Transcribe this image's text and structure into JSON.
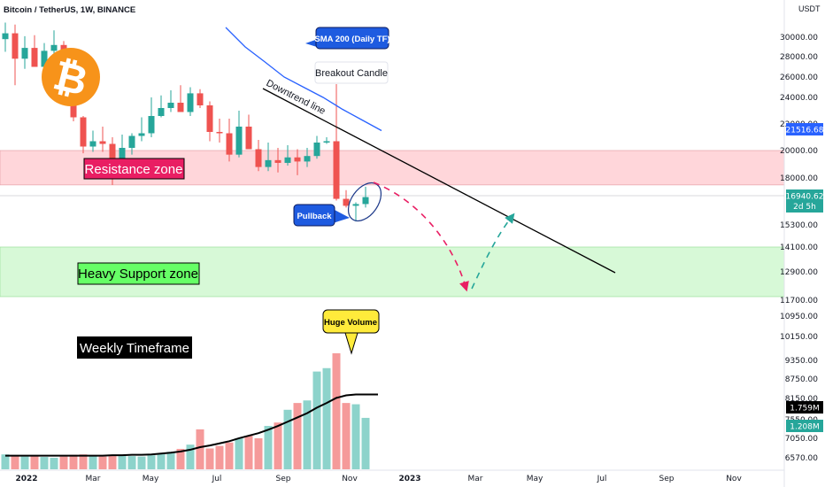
{
  "header": {
    "title": "Bitcoin / TetherUS, 1W, BINANCE",
    "currency": "USDT"
  },
  "logo": {
    "name": "bitcoin-logo",
    "color": "#F7931A"
  },
  "colors": {
    "up": "#26A69A",
    "down": "#EF5350",
    "vol_up": "#8DD3CB",
    "vol_down": "#F59A9A",
    "sma": "#2962FF",
    "vol_ma": "#000000",
    "resistance": "#FFD6DA",
    "support": "#D7F9D7",
    "resistance_label": "#E91E63",
    "support_label": "#66FF66"
  },
  "annotations": {
    "sma_label": "SMA 200 (Daily TF)",
    "breakout_label": "Breakout Candle",
    "downtrend_label": "Downtrend line",
    "resistance_label": "Resistance zone",
    "support_label": "Heavy Support zone",
    "pullback_label": "Pullback",
    "volume_label": "Huge Volume",
    "timeframe_label": "Weekly Timeframe"
  },
  "price_badges": {
    "sma": "21516.68",
    "last": "16940.62",
    "countdown": "2d 5h",
    "volume_ma": "1.759M",
    "volume": "1.208M"
  },
  "chart_data": {
    "type": "candlestick",
    "title": "Bitcoin / TetherUS, 1W, BINANCE",
    "y_axis_ticks": [
      "30000.00",
      "28000.00",
      "26000.00",
      "24000.00",
      "22000.00",
      "20000.00",
      "18000.00",
      "15300.00",
      "14100.00",
      "12900.00",
      "11700.00",
      "10950.00",
      "10150.00",
      "9350.00",
      "8750.00",
      "8150.00",
      "7550.00",
      "7050.00",
      "6570.00"
    ],
    "x_axis_ticks": [
      "2022",
      "Mar",
      "May",
      "Jul",
      "Sep",
      "Nov",
      "2023",
      "Mar",
      "May",
      "Jul",
      "Sep",
      "Nov"
    ],
    "zones": {
      "resistance": [
        17600,
        20000
      ],
      "heavy_support": [
        11850,
        14100
      ]
    },
    "projection": {
      "down_to": 11850,
      "back_to": 15500
    },
    "volume_scale": "x1e6",
    "series": [
      {
        "name": "price",
        "ohlc": [
          [
            29800,
            31500,
            28500,
            30400
          ],
          [
            30400,
            31300,
            25200,
            27800
          ],
          [
            27800,
            30100,
            26800,
            28900
          ],
          [
            28900,
            30200,
            27100,
            27000
          ],
          [
            27000,
            29400,
            26600,
            28600
          ],
          [
            28600,
            30700,
            28200,
            29200
          ],
          [
            29200,
            29600,
            26500,
            26700
          ],
          [
            26700,
            27100,
            22200,
            22500
          ],
          [
            22500,
            22600,
            19800,
            20300
          ],
          [
            20300,
            21500,
            19900,
            20700
          ],
          [
            20700,
            21800,
            19900,
            20500
          ],
          [
            20500,
            21000,
            17600,
            18900
          ],
          [
            18900,
            21200,
            18600,
            20200
          ],
          [
            20200,
            21300,
            19700,
            21100
          ],
          [
            21100,
            22500,
            20700,
            21300
          ],
          [
            21300,
            24000,
            21000,
            22600
          ],
          [
            22600,
            24200,
            22500,
            23200
          ],
          [
            23200,
            24700,
            22900,
            23600
          ],
          [
            23600,
            25200,
            23000,
            22900
          ],
          [
            22900,
            25000,
            22600,
            24400
          ],
          [
            24400,
            24800,
            23200,
            23400
          ],
          [
            23400,
            23700,
            20700,
            21400
          ],
          [
            21400,
            22400,
            20600,
            21300
          ],
          [
            21300,
            22400,
            19200,
            19700
          ],
          [
            19700,
            23000,
            19500,
            21800
          ],
          [
            21800,
            22700,
            20200,
            20100
          ],
          [
            20100,
            20800,
            18500,
            18800
          ],
          [
            18800,
            20600,
            18500,
            19300
          ],
          [
            19300,
            20200,
            18400,
            19100
          ],
          [
            19100,
            20400,
            18900,
            19500
          ],
          [
            19500,
            20100,
            18200,
            19200
          ],
          [
            19200,
            20200,
            18800,
            19600
          ],
          [
            19600,
            21100,
            19400,
            20600
          ],
          [
            20600,
            21000,
            20500,
            20700
          ],
          [
            20700,
            25300,
            16700,
            16800
          ],
          [
            16800,
            17300,
            16300,
            16400
          ],
          [
            16400,
            16600,
            15500,
            16500
          ],
          [
            16500,
            17500,
            16300,
            16900
          ]
        ]
      },
      {
        "name": "volume",
        "values": [
          0.35,
          0.31,
          0.3,
          0.31,
          0.29,
          0.27,
          0.3,
          0.34,
          0.35,
          0.32,
          0.3,
          0.34,
          0.32,
          0.31,
          0.3,
          0.33,
          0.36,
          0.41,
          0.48,
          0.58,
          0.94,
          0.49,
          0.55,
          0.63,
          0.73,
          0.79,
          0.73,
          1.02,
          1.1,
          1.4,
          1.56,
          1.62,
          2.3,
          2.38,
          2.73,
          1.56,
          1.53,
          1.21
        ]
      },
      {
        "name": "sma_200_daily",
        "points": [
          [
            5,
            31000
          ],
          [
            7,
            29000
          ],
          [
            9,
            27500
          ],
          [
            11,
            26000
          ],
          [
            13,
            25000
          ],
          [
            15,
            24000
          ],
          [
            17,
            23100
          ],
          [
            19,
            22300
          ],
          [
            21,
            21500
          ]
        ]
      },
      {
        "name": "volume_ma",
        "values": [
          0.32,
          0.32,
          0.32,
          0.32,
          0.32,
          0.32,
          0.32,
          0.32,
          0.32,
          0.32,
          0.32,
          0.33,
          0.33,
          0.34,
          0.34,
          0.35,
          0.37,
          0.39,
          0.42,
          0.46,
          0.52,
          0.56,
          0.61,
          0.66,
          0.73,
          0.79,
          0.85,
          0.93,
          1.02,
          1.12,
          1.22,
          1.32,
          1.45,
          1.56,
          1.68,
          1.74,
          1.76,
          1.76
        ]
      }
    ]
  }
}
